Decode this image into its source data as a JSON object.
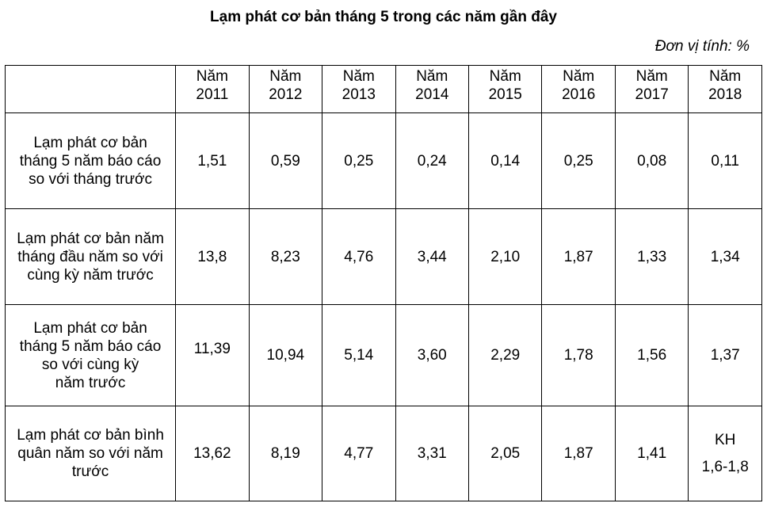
{
  "title": "Lạm phát cơ bản tháng 5 trong các năm gần đây",
  "unit_note": "Đơn vị tính: %",
  "table": {
    "corner": "",
    "headers": [
      {
        "line1": "Năm",
        "line2": "2011"
      },
      {
        "line1": "Năm",
        "line2": "2012"
      },
      {
        "line1": "Năm",
        "line2": "2013"
      },
      {
        "line1": "Năm",
        "line2": "2014"
      },
      {
        "line1": "Năm",
        "line2": "2015"
      },
      {
        "line1": "Năm",
        "line2": "2016"
      },
      {
        "line1": "Năm",
        "line2": "2017"
      },
      {
        "line1": "Năm",
        "line2": "2018"
      }
    ],
    "rows": [
      {
        "label_lines": [
          "Lạm phát cơ bản",
          "tháng 5 năm báo cáo",
          "so với tháng trước"
        ],
        "values": [
          "1,51",
          "0,59",
          "0,25",
          "0,24",
          "0,14",
          "0,25",
          "0,08",
          "0,11"
        ]
      },
      {
        "label_lines": [
          "Lạm phát cơ bản năm",
          "tháng đầu năm so với",
          "cùng kỳ năm trước"
        ],
        "values": [
          "13,8",
          "8,23",
          "4,76",
          "3,44",
          "2,10",
          "1,87",
          "1,33",
          "1,34"
        ]
      },
      {
        "label_lines": [
          "Lạm phát cơ bản",
          "tháng 5 năm báo cáo",
          "so với cùng kỳ",
          "năm trước"
        ],
        "values": [
          "11,39",
          "10,94",
          "5,14",
          "3,60",
          "2,29",
          "1,78",
          "1,56",
          "1,37"
        ]
      },
      {
        "label_lines": [
          "Lạm phát cơ bản bình",
          "quân năm so với năm",
          "trước"
        ],
        "values": [
          "13,62",
          "8,19",
          "4,77",
          "3,31",
          "2,05",
          "1,87",
          "1,41"
        ],
        "last_value_lines": [
          "KH",
          "1,6-1,8"
        ]
      }
    ]
  }
}
